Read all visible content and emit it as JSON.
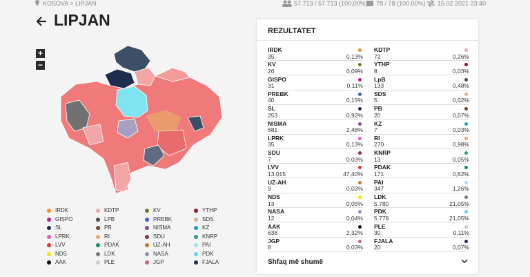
{
  "breadcrumb": "KOSOVA > LIPJAN",
  "stats": {
    "voters": "57.713 / 57.713 (100,00%)",
    "stations": "78 / 78 (100,00%)",
    "updated": "15.02.2021 23:40"
  },
  "title": "LIPJAN",
  "zoom": {
    "in": "+",
    "out": "−"
  },
  "legend": [
    {
      "name": "IRDK",
      "color": "#f28c28"
    },
    {
      "name": "KDTP",
      "color": "#f4a6a6"
    },
    {
      "name": "KV",
      "color": "#6b7a1e"
    },
    {
      "name": "YTHP",
      "color": "#8b1a2b"
    },
    {
      "name": "GISPO",
      "color": "#c21a8c"
    },
    {
      "name": "LPB",
      "color": "#4a4a4a"
    },
    {
      "name": "PREBK",
      "color": "#3a5fcd"
    },
    {
      "name": "SDS",
      "color": "#d2b48c"
    },
    {
      "name": "SL",
      "color": "#1f2d4d"
    },
    {
      "name": "PB",
      "color": "#6b4a2b"
    },
    {
      "name": "NISMA",
      "color": "#7b4a8c"
    },
    {
      "name": "KZ",
      "color": "#1aa3b8"
    },
    {
      "name": "LPRK",
      "color": "#e060c0"
    },
    {
      "name": "RI",
      "color": "#f4a460"
    },
    {
      "name": "SDU",
      "color": "#8c2a5a"
    },
    {
      "name": "KNRP",
      "color": "#2a9d8f"
    },
    {
      "name": "LVV",
      "color": "#e8323c"
    },
    {
      "name": "PDAK",
      "color": "#1a8c5a"
    },
    {
      "name": "UZ-AH",
      "color": "#c8782a"
    },
    {
      "name": "PAI",
      "color": "#9fe4f0"
    },
    {
      "name": "NDS",
      "color": "#f2e600"
    },
    {
      "name": "LDK",
      "color": "#7a7a7a"
    },
    {
      "name": "NASA",
      "color": "#8a94b8"
    },
    {
      "name": "PDK",
      "color": "#5ad8f0"
    },
    {
      "name": "AAK",
      "color": "#111111"
    },
    {
      "name": "PLE",
      "color": "#cccccc"
    },
    {
      "name": "JGP",
      "color": "#c86478"
    },
    {
      "name": "FJALA",
      "color": "#1f2d5a"
    }
  ],
  "results": {
    "title": "REZULTATET",
    "more": "Shfaq më shumë",
    "left": [
      {
        "name": "IRDK",
        "votes": "35",
        "pct": "0,13%",
        "color": "#f28c28"
      },
      {
        "name": "KV",
        "votes": "26",
        "pct": "0,09%",
        "color": "#6b7a1e"
      },
      {
        "name": "GISPO",
        "votes": "31",
        "pct": "0,11%",
        "color": "#c21a8c"
      },
      {
        "name": "PREBK",
        "votes": "40",
        "pct": "0,15%",
        "color": "#3a5fcd"
      },
      {
        "name": "SL",
        "votes": "253",
        "pct": "0,92%",
        "color": "#1f2d4d"
      },
      {
        "name": "NISMA",
        "votes": "681",
        "pct": "2,48%",
        "color": "#7b4a8c"
      },
      {
        "name": "LPRK",
        "votes": "35",
        "pct": "0,13%",
        "color": "#e060c0"
      },
      {
        "name": "SDU",
        "votes": "7",
        "pct": "0,03%",
        "color": "#8c2a5a"
      },
      {
        "name": "LVV",
        "votes": "13.015",
        "pct": "47,40%",
        "color": "#e8323c"
      },
      {
        "name": "UZ-AH",
        "votes": "9",
        "pct": "0,03%",
        "color": "#c8782a"
      },
      {
        "name": "NDS",
        "votes": "13",
        "pct": "0,05%",
        "color": "#f2e600"
      },
      {
        "name": "NASA",
        "votes": "12",
        "pct": "0,04%",
        "color": "#8a94b8"
      },
      {
        "name": "AAK",
        "votes": "638",
        "pct": "2,32%",
        "color": "#111111"
      },
      {
        "name": "JGP",
        "votes": "8",
        "pct": "0,03%",
        "color": "#c86478"
      }
    ],
    "right": [
      {
        "name": "KDTP",
        "votes": "72",
        "pct": "0,26%",
        "color": "#f4a6a6"
      },
      {
        "name": "YTHP",
        "votes": "8",
        "pct": "0,03%",
        "color": "#8b1a2b"
      },
      {
        "name": "LpB",
        "votes": "133",
        "pct": "0,48%",
        "color": "#4a4a4a"
      },
      {
        "name": "SDS",
        "votes": "5",
        "pct": "0,02%",
        "color": "#d2b48c"
      },
      {
        "name": "PB",
        "votes": "20",
        "pct": "0,07%",
        "color": "#6b4a2b"
      },
      {
        "name": "KZ",
        "votes": "7",
        "pct": "0,03%",
        "color": "#1aa3b8"
      },
      {
        "name": "RI",
        "votes": "270",
        "pct": "0,98%",
        "color": "#f4a460"
      },
      {
        "name": "KNRP",
        "votes": "13",
        "pct": "0,05%",
        "color": "#2a9d8f"
      },
      {
        "name": "PDAK",
        "votes": "171",
        "pct": "0,62%",
        "color": "#1a8c5a"
      },
      {
        "name": "PAI",
        "votes": "347",
        "pct": "1,26%",
        "color": "#9fe4f0"
      },
      {
        "name": "LDK",
        "votes": "5.780",
        "pct": "21,05%",
        "color": "#7a7a7a"
      },
      {
        "name": "PDK",
        "votes": "5.779",
        "pct": "21,05%",
        "color": "#5ad8f0"
      },
      {
        "name": "PLE",
        "votes": "30",
        "pct": "0,11%",
        "color": "#cccccc"
      },
      {
        "name": "FJALA",
        "votes": "20",
        "pct": "0,07%",
        "color": "#1f2d5a"
      }
    ]
  }
}
